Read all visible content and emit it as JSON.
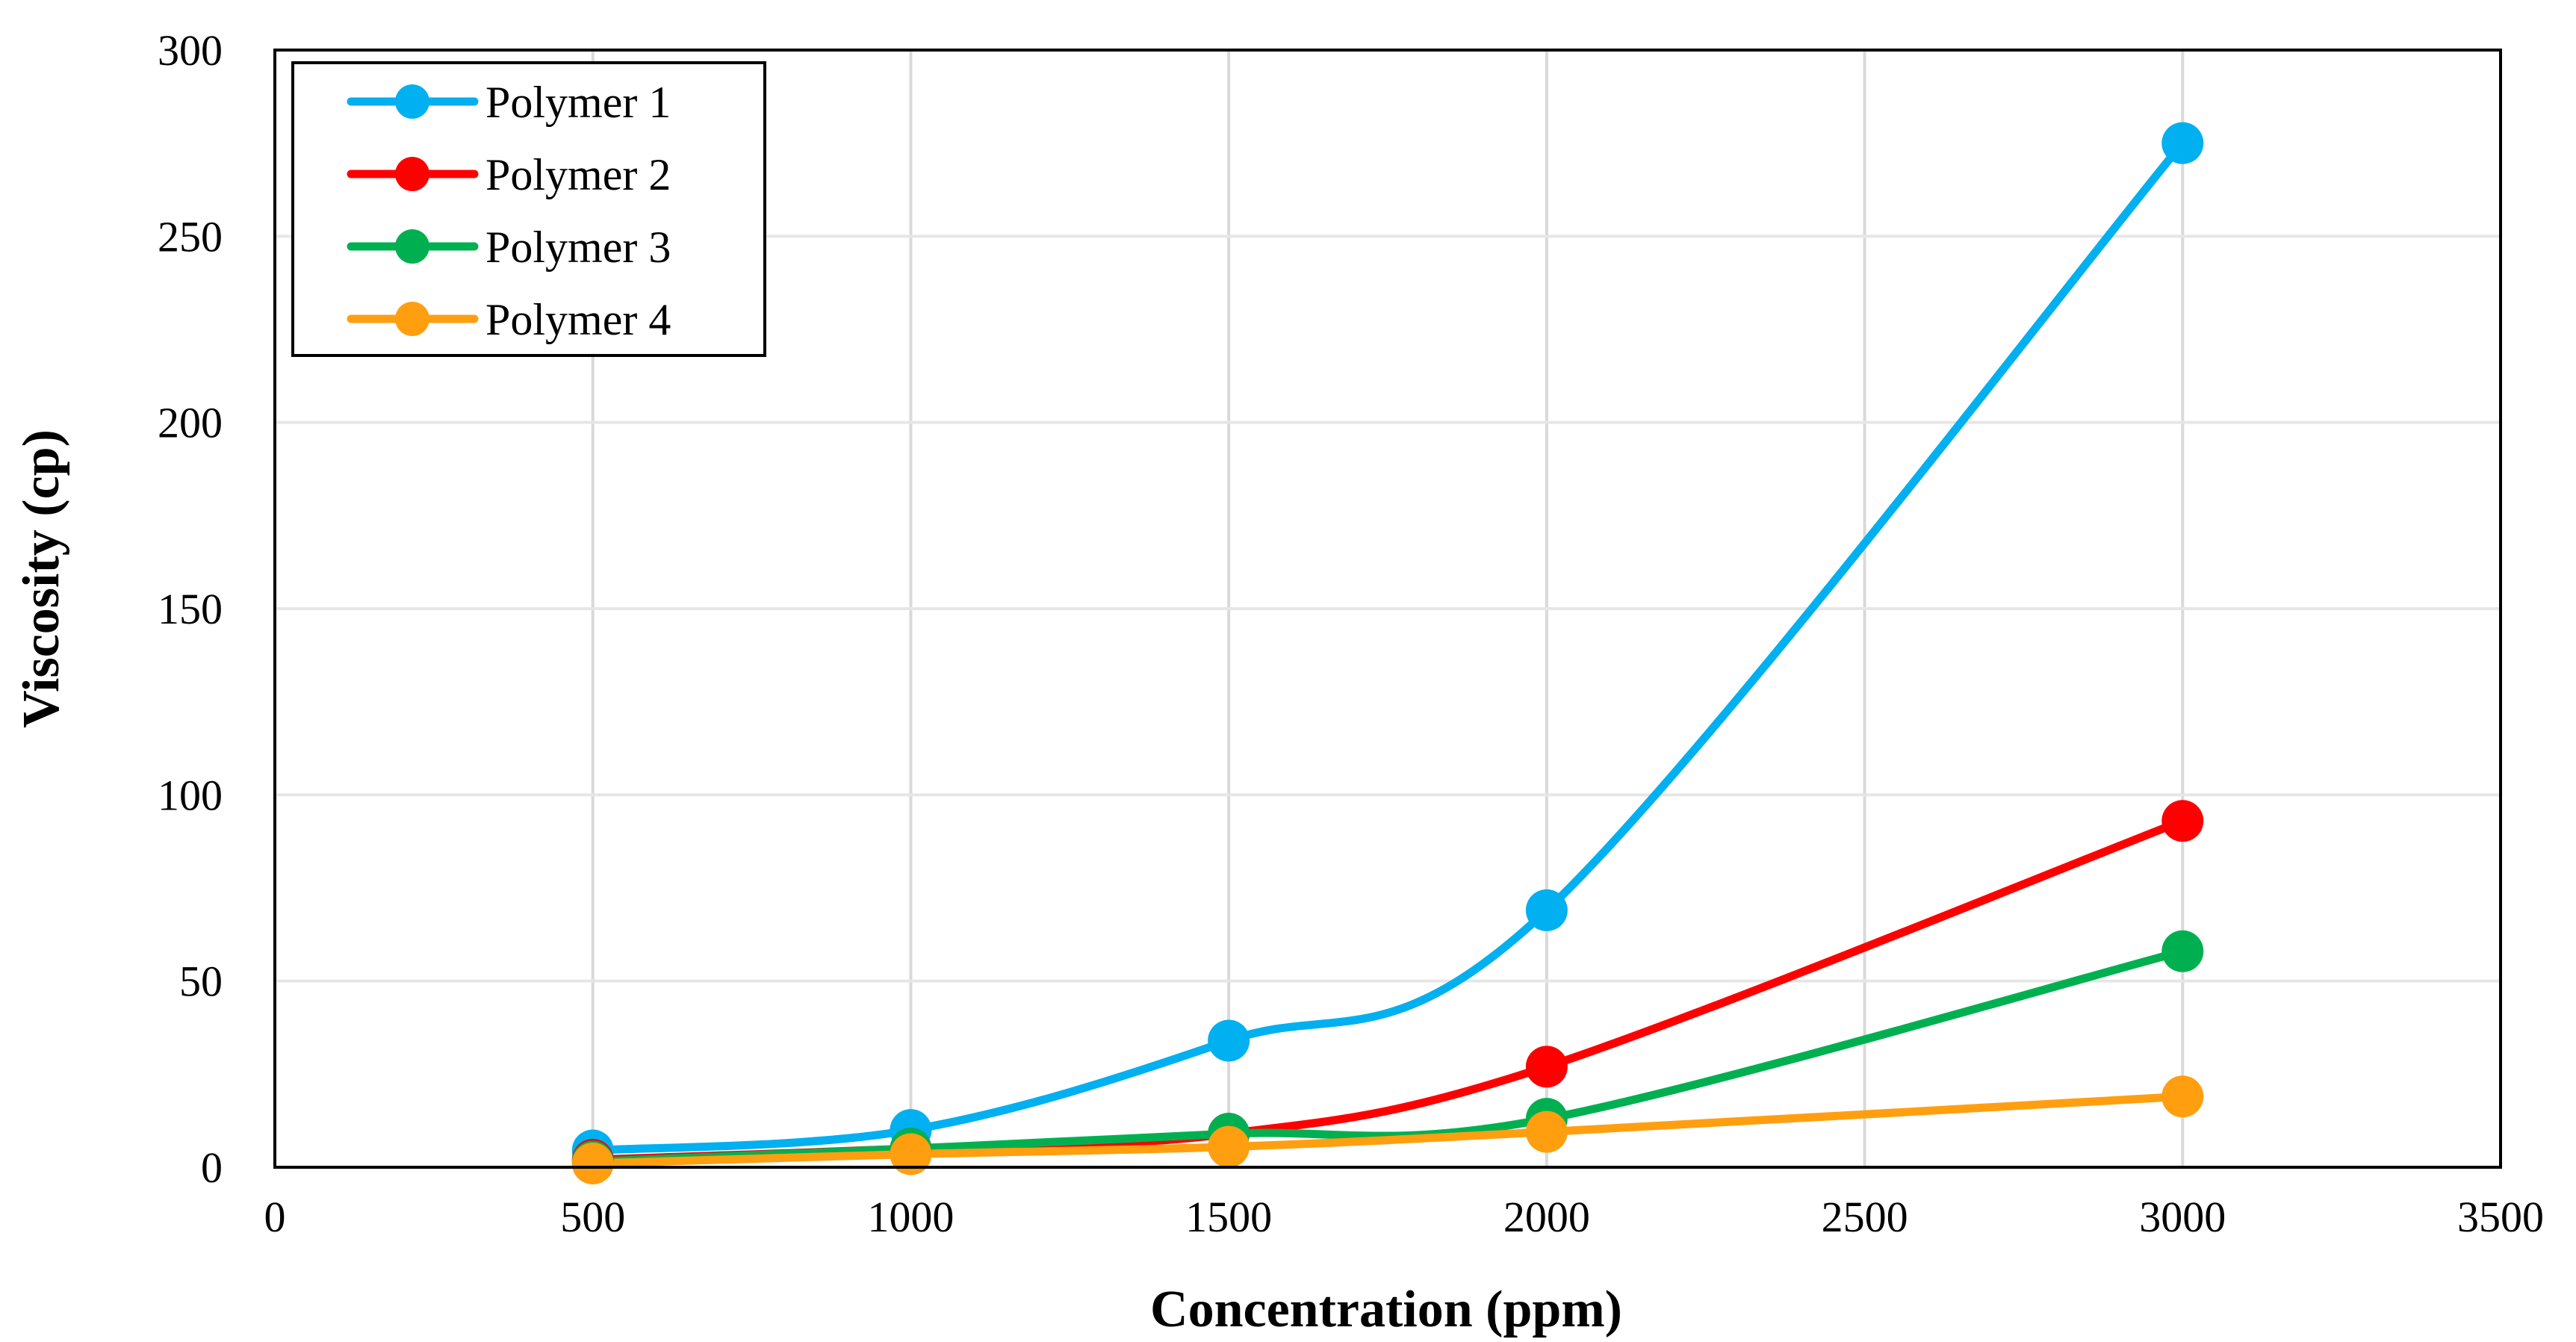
{
  "chart_data": {
    "type": "line",
    "title": "",
    "xlabel": "Concentration (ppm)",
    "ylabel": "Viscosity (cp)",
    "xlim": [
      0,
      3500
    ],
    "ylim": [
      0,
      300
    ],
    "x_ticks": [
      0,
      500,
      1000,
      1500,
      2000,
      2500,
      3000,
      3500
    ],
    "y_ticks": [
      0,
      50,
      100,
      150,
      200,
      250,
      300
    ],
    "x_tick_labels": [
      "0",
      "500",
      "1000",
      "1500",
      "2000",
      "2500",
      "3000",
      "3500"
    ],
    "y_tick_labels": [
      "0",
      "50",
      "100",
      "150",
      "200",
      "250",
      "300"
    ],
    "grid": true,
    "legend_position": "top-left",
    "x": [
      500,
      1000,
      1500,
      2000,
      3000
    ],
    "series": [
      {
        "name": "Polymer 1",
        "color": "#00b0f0",
        "values": [
          4.5,
          10,
          34,
          69,
          275
        ]
      },
      {
        "name": "Polymer 2",
        "color": "#ff0000",
        "values": [
          2,
          5,
          9,
          27,
          93
        ]
      },
      {
        "name": "Polymer 3",
        "color": "#00b050",
        "values": [
          1.5,
          5,
          9,
          13,
          58
        ]
      },
      {
        "name": "Polymer 4",
        "color": "#ff9f10",
        "values": [
          1,
          3.5,
          5.5,
          9.5,
          19
        ]
      }
    ]
  }
}
